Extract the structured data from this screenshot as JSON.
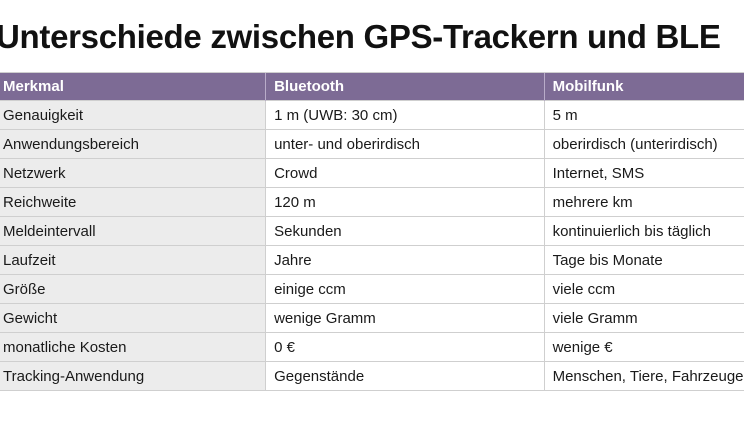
{
  "title": "Unterschiede zwischen GPS-Trackern und BLE",
  "table": {
    "header": [
      "Merkmal",
      "Bluetooth",
      "Mobilfunk"
    ],
    "rows": [
      [
        "Genauigkeit",
        "1 m (UWB: 30 cm)",
        "5 m"
      ],
      [
        "Anwendungsbereich",
        "unter- und oberirdisch",
        "oberirdisch (unterirdisch)"
      ],
      [
        "Netzwerk",
        "Crowd",
        "Internet, SMS"
      ],
      [
        "Reichweite",
        "120 m",
        "mehrere km"
      ],
      [
        "Meldeintervall",
        "Sekunden",
        "kontinuierlich bis täglich"
      ],
      [
        "Laufzeit",
        "Jahre",
        "Tage bis Monate"
      ],
      [
        "Größe",
        "einige ccm",
        "viele ccm"
      ],
      [
        "Gewicht",
        "wenige Gramm",
        "viele Gramm"
      ],
      [
        "monatliche Kosten",
        "0 €",
        "wenige €"
      ],
      [
        "Tracking-Anwendung",
        "Gegenstände",
        "Menschen, Tiere, Fahrzeuge"
      ]
    ]
  }
}
